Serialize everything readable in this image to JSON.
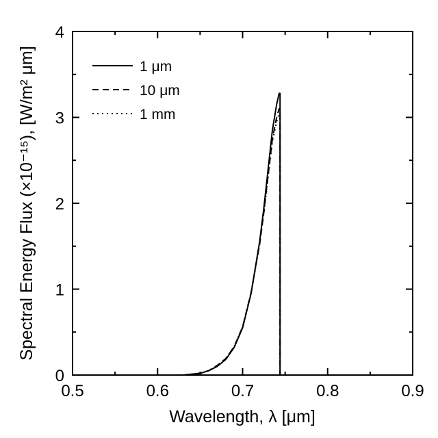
{
  "chart_data": {
    "type": "line",
    "title": "",
    "xlabel": "Wavelength, λ [μm]",
    "ylabel": "Spectral Energy Flux (×10⁻¹⁵), [W/m² μm]",
    "xlim": [
      0.5,
      0.9
    ],
    "ylim": [
      0,
      4
    ],
    "x_ticks": [
      "0.5",
      "0.6",
      "0.7",
      "0.8",
      "0.9"
    ],
    "y_ticks": [
      "0",
      "1",
      "2",
      "3",
      "4"
    ],
    "grid": false,
    "legend_position": "top-left",
    "series": [
      {
        "name": "1 μm",
        "style": "solid",
        "x": [
          0.5,
          0.63,
          0.65,
          0.66,
          0.67,
          0.68,
          0.69,
          0.7,
          0.71,
          0.72,
          0.725,
          0.73,
          0.735,
          0.74,
          0.743,
          0.744,
          0.744
        ],
        "y": [
          0,
          0,
          0.02,
          0.05,
          0.1,
          0.18,
          0.32,
          0.55,
          0.95,
          1.55,
          1.95,
          2.4,
          2.85,
          3.15,
          3.28,
          3.28,
          0
        ]
      },
      {
        "name": "10 μm",
        "style": "dashed",
        "x": [
          0.5,
          0.63,
          0.65,
          0.66,
          0.67,
          0.68,
          0.69,
          0.7,
          0.71,
          0.72,
          0.725,
          0.73,
          0.735,
          0.74,
          0.743,
          0.744,
          0.744
        ],
        "y": [
          0,
          0,
          0.02,
          0.05,
          0.11,
          0.19,
          0.33,
          0.56,
          0.96,
          1.52,
          1.9,
          2.33,
          2.75,
          3.0,
          3.1,
          3.1,
          0
        ]
      },
      {
        "name": "1 mm",
        "style": "dotted",
        "x": [
          0.5,
          0.63,
          0.65,
          0.66,
          0.67,
          0.68,
          0.69,
          0.7,
          0.71,
          0.72,
          0.725,
          0.73,
          0.735,
          0.74,
          0.743,
          0.744,
          0.744
        ],
        "y": [
          0,
          0,
          0.02,
          0.05,
          0.11,
          0.19,
          0.33,
          0.56,
          0.96,
          1.52,
          1.89,
          2.31,
          2.72,
          2.95,
          3.05,
          3.05,
          0
        ]
      }
    ]
  }
}
